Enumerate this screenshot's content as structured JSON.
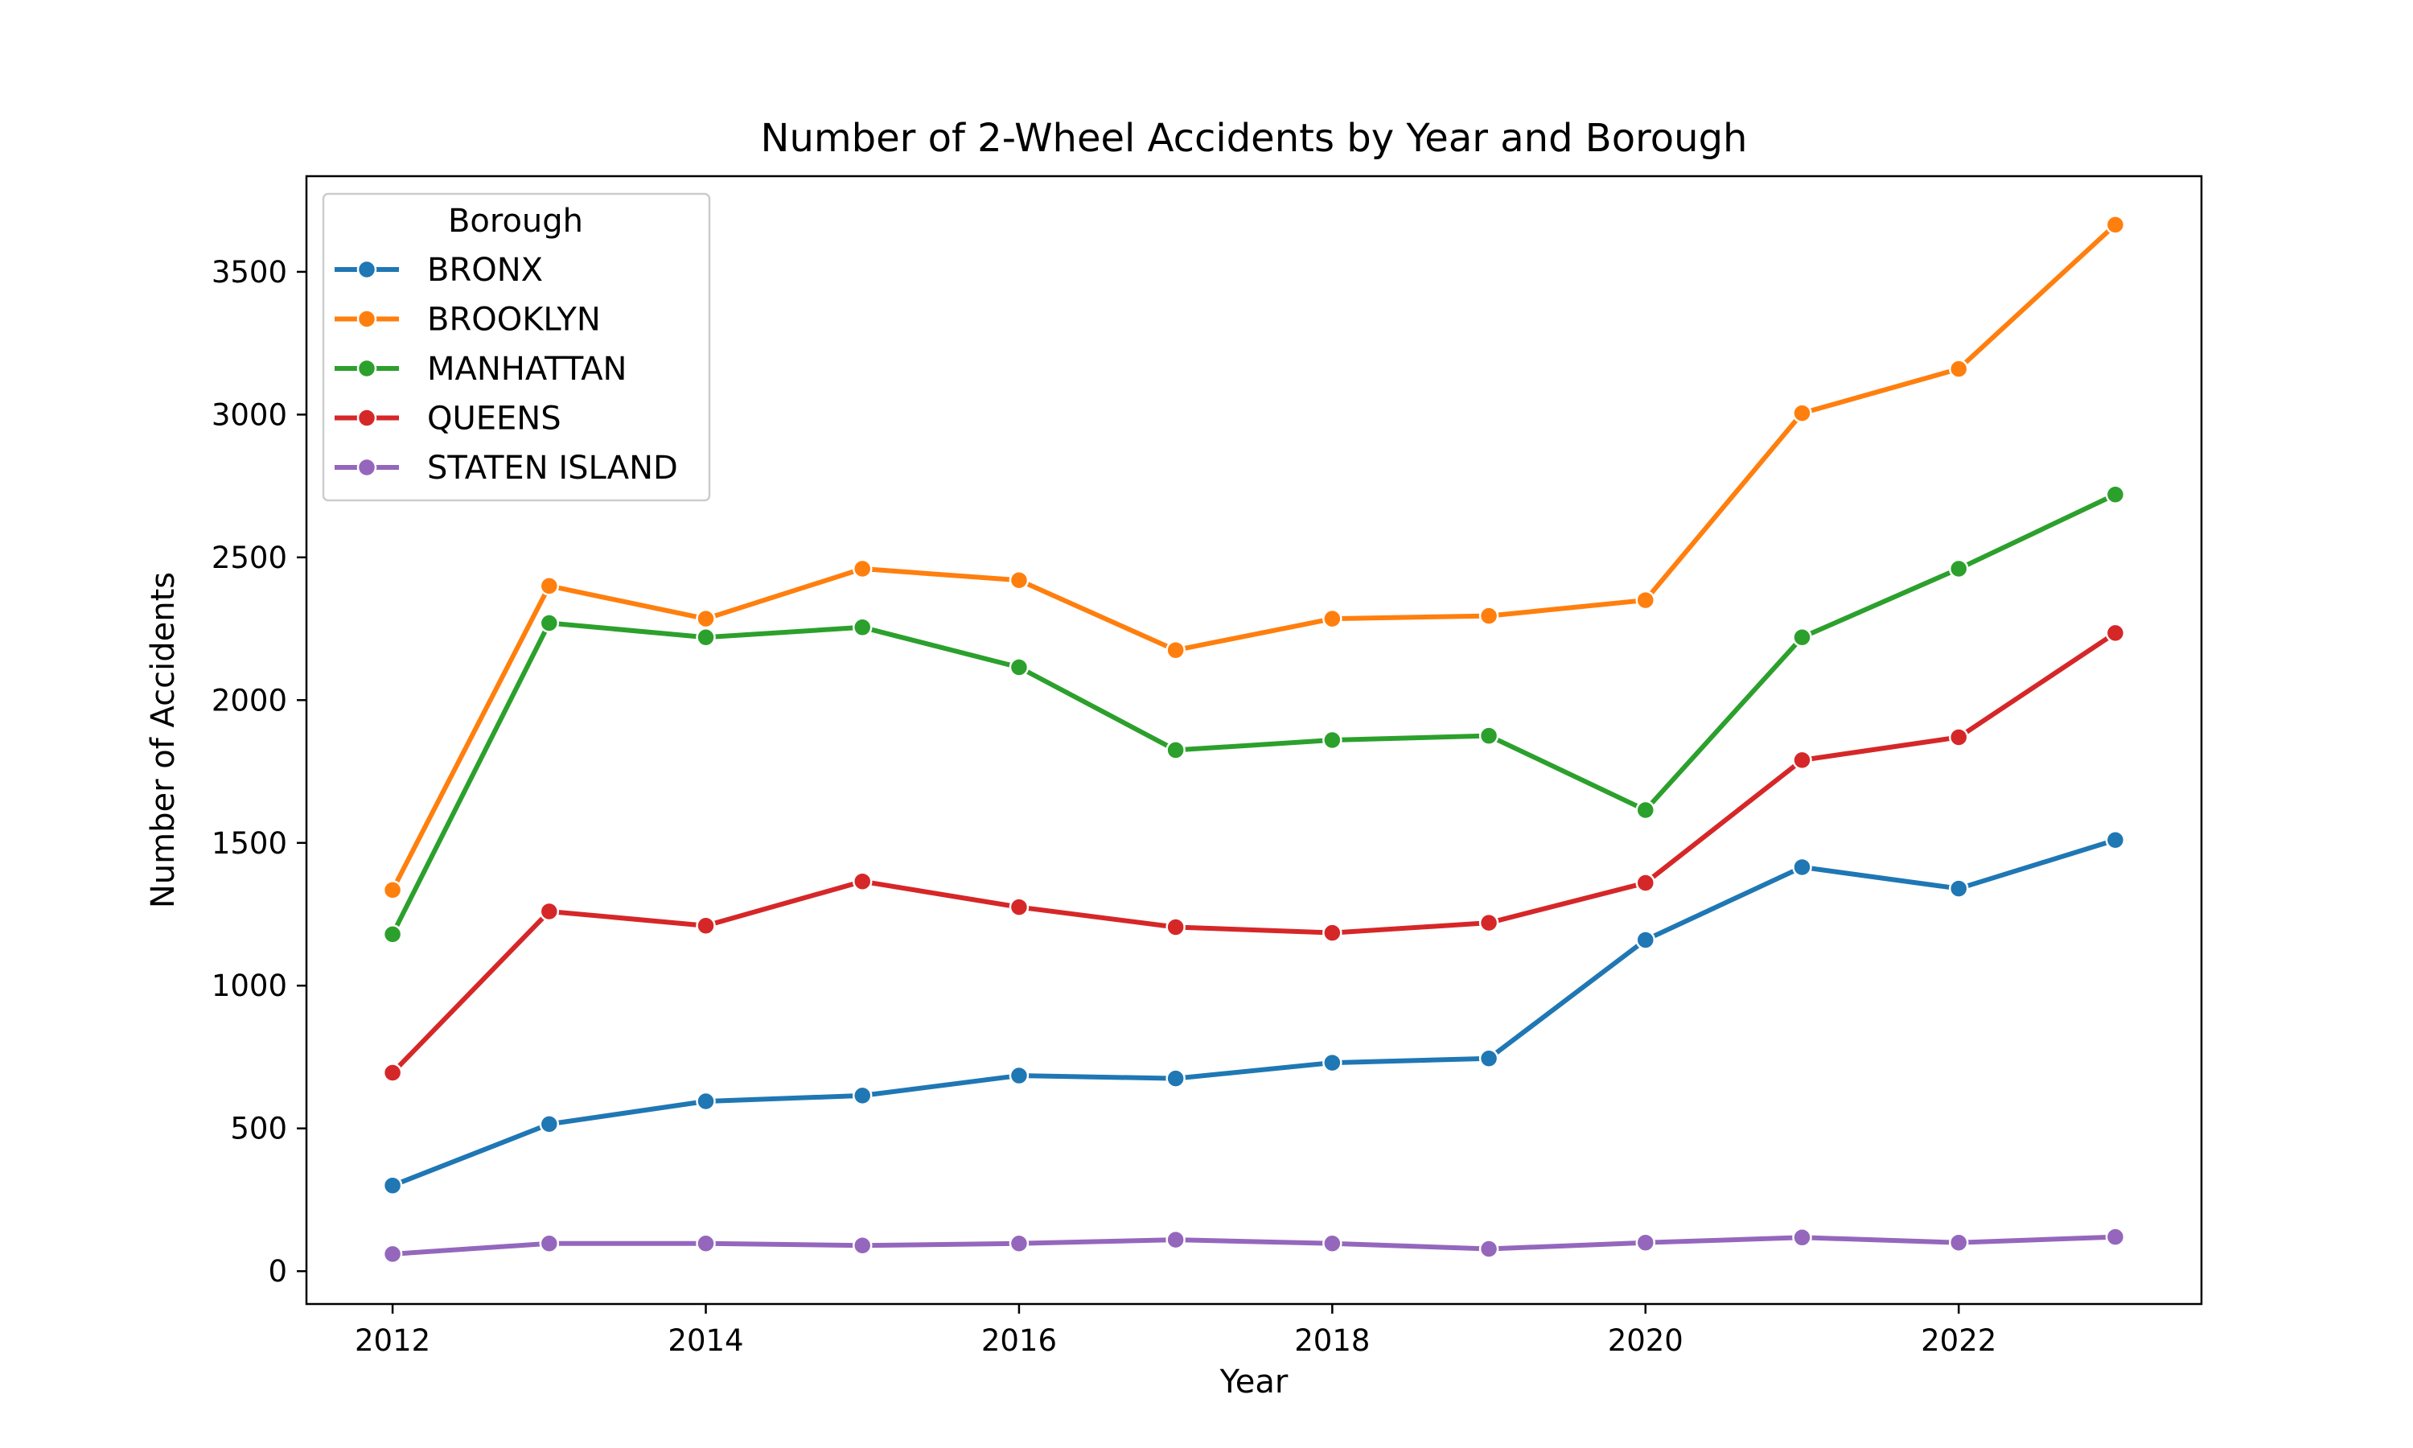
{
  "chart_data": {
    "type": "line",
    "title": "Number of 2-Wheel Accidents by Year and Borough",
    "xlabel": "Year",
    "ylabel": "Number of Accidents",
    "xlim": [
      2011.45,
      2023.55
    ],
    "ylim": [
      -115,
      3835
    ],
    "xticks": [
      2012,
      2014,
      2016,
      2018,
      2020,
      2022
    ],
    "yticks": [
      0,
      500,
      1000,
      1500,
      2000,
      2500,
      3000,
      3500
    ],
    "grid": false,
    "legend": {
      "title": "Borough",
      "placement": "upper-left"
    },
    "x": [
      2012,
      2013,
      2014,
      2015,
      2016,
      2017,
      2018,
      2019,
      2020,
      2021,
      2022,
      2023
    ],
    "series": [
      {
        "name": "BRONX",
        "color": "#1f77b4",
        "values": [
          300,
          515,
          595,
          615,
          685,
          675,
          730,
          745,
          1160,
          1415,
          1340,
          1510
        ]
      },
      {
        "name": "BROOKLYN",
        "color": "#ff7f0e",
        "values": [
          1335,
          2400,
          2285,
          2460,
          2420,
          2175,
          2285,
          2295,
          2350,
          3005,
          3160,
          3665
        ]
      },
      {
        "name": "MANHATTAN",
        "color": "#2ca02c",
        "values": [
          1180,
          2270,
          2220,
          2255,
          2115,
          1825,
          1860,
          1875,
          1615,
          2220,
          2460,
          2720
        ]
      },
      {
        "name": "QUEENS",
        "color": "#d62728",
        "values": [
          695,
          1260,
          1210,
          1365,
          1275,
          1205,
          1185,
          1220,
          1360,
          1790,
          1870,
          2235
        ]
      },
      {
        "name": "STATEN ISLAND",
        "color": "#9467bd",
        "values": [
          60,
          97,
          97,
          90,
          97,
          110,
          97,
          78,
          100,
          118,
          100,
          120
        ]
      }
    ]
  }
}
